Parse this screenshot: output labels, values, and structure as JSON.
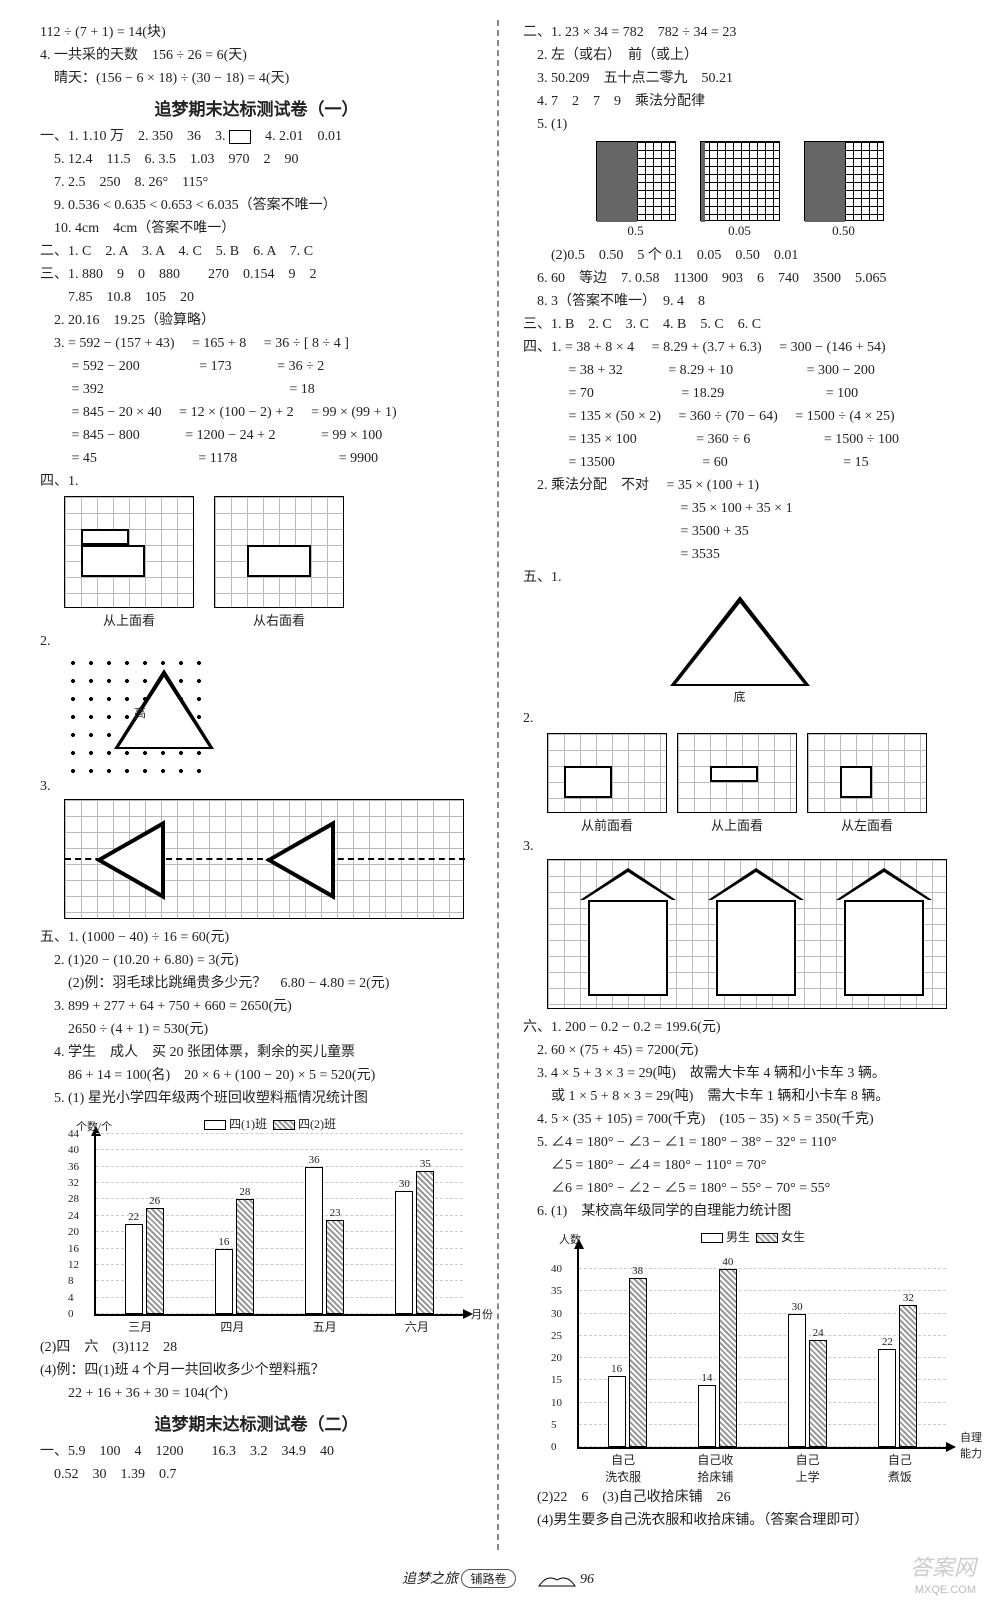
{
  "left": {
    "pre": [
      "112 ÷ (7 + 1) = 14(块)",
      "4. 一共采的天数　156 ÷ 26 = 6(天)",
      "　晴天：(156 − 6 × 18) ÷ (30 − 18) = 4(天)"
    ],
    "title1": "追梦期末达标测试卷（一）",
    "sec1": [
      "一、1. 1.10 万　2. 350　36　3. 　　4. 2.01　0.01",
      "　5. 12.4　11.5　6. 3.5　1.03　970　2　90",
      "　7. 2.5　250　8. 26°　115°",
      "　9. 0.536 < 0.635 < 0.653 < 6.035（答案不唯一）",
      "　10. 4cm　4cm（答案不唯一）",
      "二、1. C　2. A　3. A　4. C　5. B　6. A　7. C",
      "三、1. 880　9　0　880　　270　0.154　9　2",
      "　　7.85　10.8　105　20",
      "　2. 20.16　19.25（验算略）",
      "　3.  = 592 − (157 + 43)　 = 165 + 8　 = 36 ÷ [ 8 ÷ 4 ]",
      "　　 = 592 − 200　　　　 = 173　　　 = 36 ÷ 2",
      "　　 = 392　　　　　　　　　　　　　 = 18",
      "　　 = 845 − 20 × 40　 = 12 × (100 − 2) + 2　 = 99 × (99 + 1)",
      "　　 = 845 − 800　　　 = 1200 − 24 + 2　　　 = 99 × 100",
      "　　 = 45　　　　　　　 = 1178　　　　　　　 = 9900"
    ],
    "fig41": {
      "caption_left": "从上面看",
      "caption_right": "从右面看"
    },
    "fig42_label": "2.",
    "tri_label": "高",
    "fig43_label": "3.",
    "sec5": [
      "五、1. (1000 − 40) ÷ 16 = 60(元)",
      "　2. (1)20 − (10.20 + 6.80) = 3(元)",
      "　　(2)例：羽毛球比跳绳贵多少元？　6.80 − 4.80 = 2(元)",
      "　3. 899 + 277 + 64 + 750 + 660 = 2650(元)",
      "　　2650 ÷ (4 + 1) = 530(元)",
      "　4. 学生　成人　买 20 张团体票，剩余的买儿童票",
      "　　86 + 14 = 100(名)　20 × 6 + (100 − 20) × 5 = 520(元)",
      "　5. (1) 星光小学四年级两个班回收塑料瓶情况统计图"
    ],
    "chart1": {
      "y_label": "个数/个",
      "x_label": "月份",
      "legend": [
        "四(1)班",
        "四(2)班"
      ],
      "y_max": 44,
      "y_ticks": [
        0,
        4,
        8,
        12,
        16,
        20,
        24,
        28,
        32,
        36,
        40,
        44
      ],
      "categories": [
        "三月",
        "四月",
        "五月",
        "六月"
      ],
      "series": [
        {
          "color": "#ffffff",
          "values": [
            22,
            16,
            36,
            30
          ]
        },
        {
          "color": "hatched",
          "values": [
            26,
            28,
            23,
            35
          ]
        }
      ]
    },
    "sec5b": [
      "(2)四　六　(3)112　28",
      "(4)例：四(1)班 4 个月一共回收多少个塑料瓶？",
      "　　22 + 16 + 36 + 30 = 104(个)"
    ],
    "title2": "追梦期末达标测试卷（二）",
    "sec_bottom": [
      "一、5.9　100　4　1200　　16.3　3.2　34.9　40",
      "　0.52　30　1.39　0.7"
    ]
  },
  "right": {
    "sec2": [
      "二、1. 23 × 34 = 782　782 ÷ 34 = 23",
      "　2. 左（或右）　前（或上）",
      "　3. 50.209　五十点二零九　50.21",
      "　4. 7　2　7　9　乘法分配律",
      "　5. (1)"
    ],
    "squares": {
      "labels": [
        "0.5",
        "0.05",
        "0.50"
      ]
    },
    "sec2b": [
      "　　(2)0.5　0.50　5 个 0.1　0.05　0.50　0.01",
      "　6. 60　等边　7. 0.58　11300　903　6　740　3500　5.065",
      "　8. 3（答案不唯一）　9. 4　8",
      "三、1. B　2. C　3. C　4. B　5. C　6. C",
      "四、1.  = 38 + 8 × 4　 = 8.29 + (3.7 + 6.3)　 = 300 − (146 + 54)",
      "　　　 = 38 + 32　　　 = 8.29 + 10　　　　　 = 300 − 200",
      "　　　 = 70　　　　　　 = 18.29　　　　　　　 = 100",
      "　　　 = 135 × (50 × 2)　 = 360 ÷ (70 − 64)　 = 1500 ÷ (4 × 25)",
      "　　　 = 135 × 100　　　　 = 360 ÷ 6　　　　　 = 1500 ÷ 100",
      "　　　 = 13500　　　　　　 = 60　　　　　　　　 = 15",
      "　2. 乘法分配　不对　 = 35 × (100 + 1)",
      "　　　　　　　　　　　 = 35 × 100 + 35 × 1",
      "　　　　　　　　　　　 = 3500 + 35",
      "　　　　　　　　　　　 = 3535"
    ],
    "fig5": {
      "label": "五、1.",
      "gao": "高",
      "di": "底"
    },
    "fig52": {
      "label": "2.",
      "captions": [
        "从前面看",
        "从上面看",
        "从左面看"
      ]
    },
    "fig53_label": "3.",
    "sec6": [
      "六、1. 200 − 0.2 − 0.2 = 199.6(元)",
      "　2. 60 × (75 + 45) = 7200(元)",
      "　3. 4 × 5 + 3 × 3 = 29(吨)　故需大卡车 4 辆和小卡车 3 辆。",
      "　　或 1 × 5 + 8 × 3 = 29(吨)　需大卡车 1 辆和小卡车 8 辆。",
      "　4. 5 × (35 + 105) = 700(千克)　(105 − 35) × 5 = 350(千克)",
      "　5. ∠4 = 180° − ∠3 − ∠1 = 180° − 38° − 32° = 110°",
      "　　∠5 = 180° − ∠4 = 180° − 110° = 70°",
      "　　∠6 = 180° − ∠2 − ∠5 = 180° − 55° − 70° = 55°",
      "　6. (1)　某校高年级同学的自理能力统计图"
    ],
    "chart2": {
      "y_label": "人数",
      "x_label": "自理\n能力",
      "legend": [
        "男生",
        "女生"
      ],
      "y_max": 45,
      "y_ticks": [
        0,
        5,
        10,
        15,
        20,
        25,
        30,
        35,
        40
      ],
      "categories": [
        "自己\n洗衣服",
        "自己收\n拾床铺",
        "自己\n上学",
        "自己\n煮饭"
      ],
      "series": [
        {
          "color": "#ffffff",
          "values": [
            16,
            14,
            30,
            22
          ]
        },
        {
          "color": "hatched",
          "values": [
            38,
            40,
            24,
            32
          ]
        }
      ]
    },
    "sec6b": [
      "　(2)22　6　(3)自己收拾床铺　26",
      "　(4)男生要多自己洗衣服和收拾床铺。（答案合理即可）"
    ]
  },
  "footer": {
    "brand": "追梦之旅",
    "badge": "铺路卷",
    "page": "96"
  },
  "watermark": "答案网",
  "watermark_sub": "MXQE.COM"
}
